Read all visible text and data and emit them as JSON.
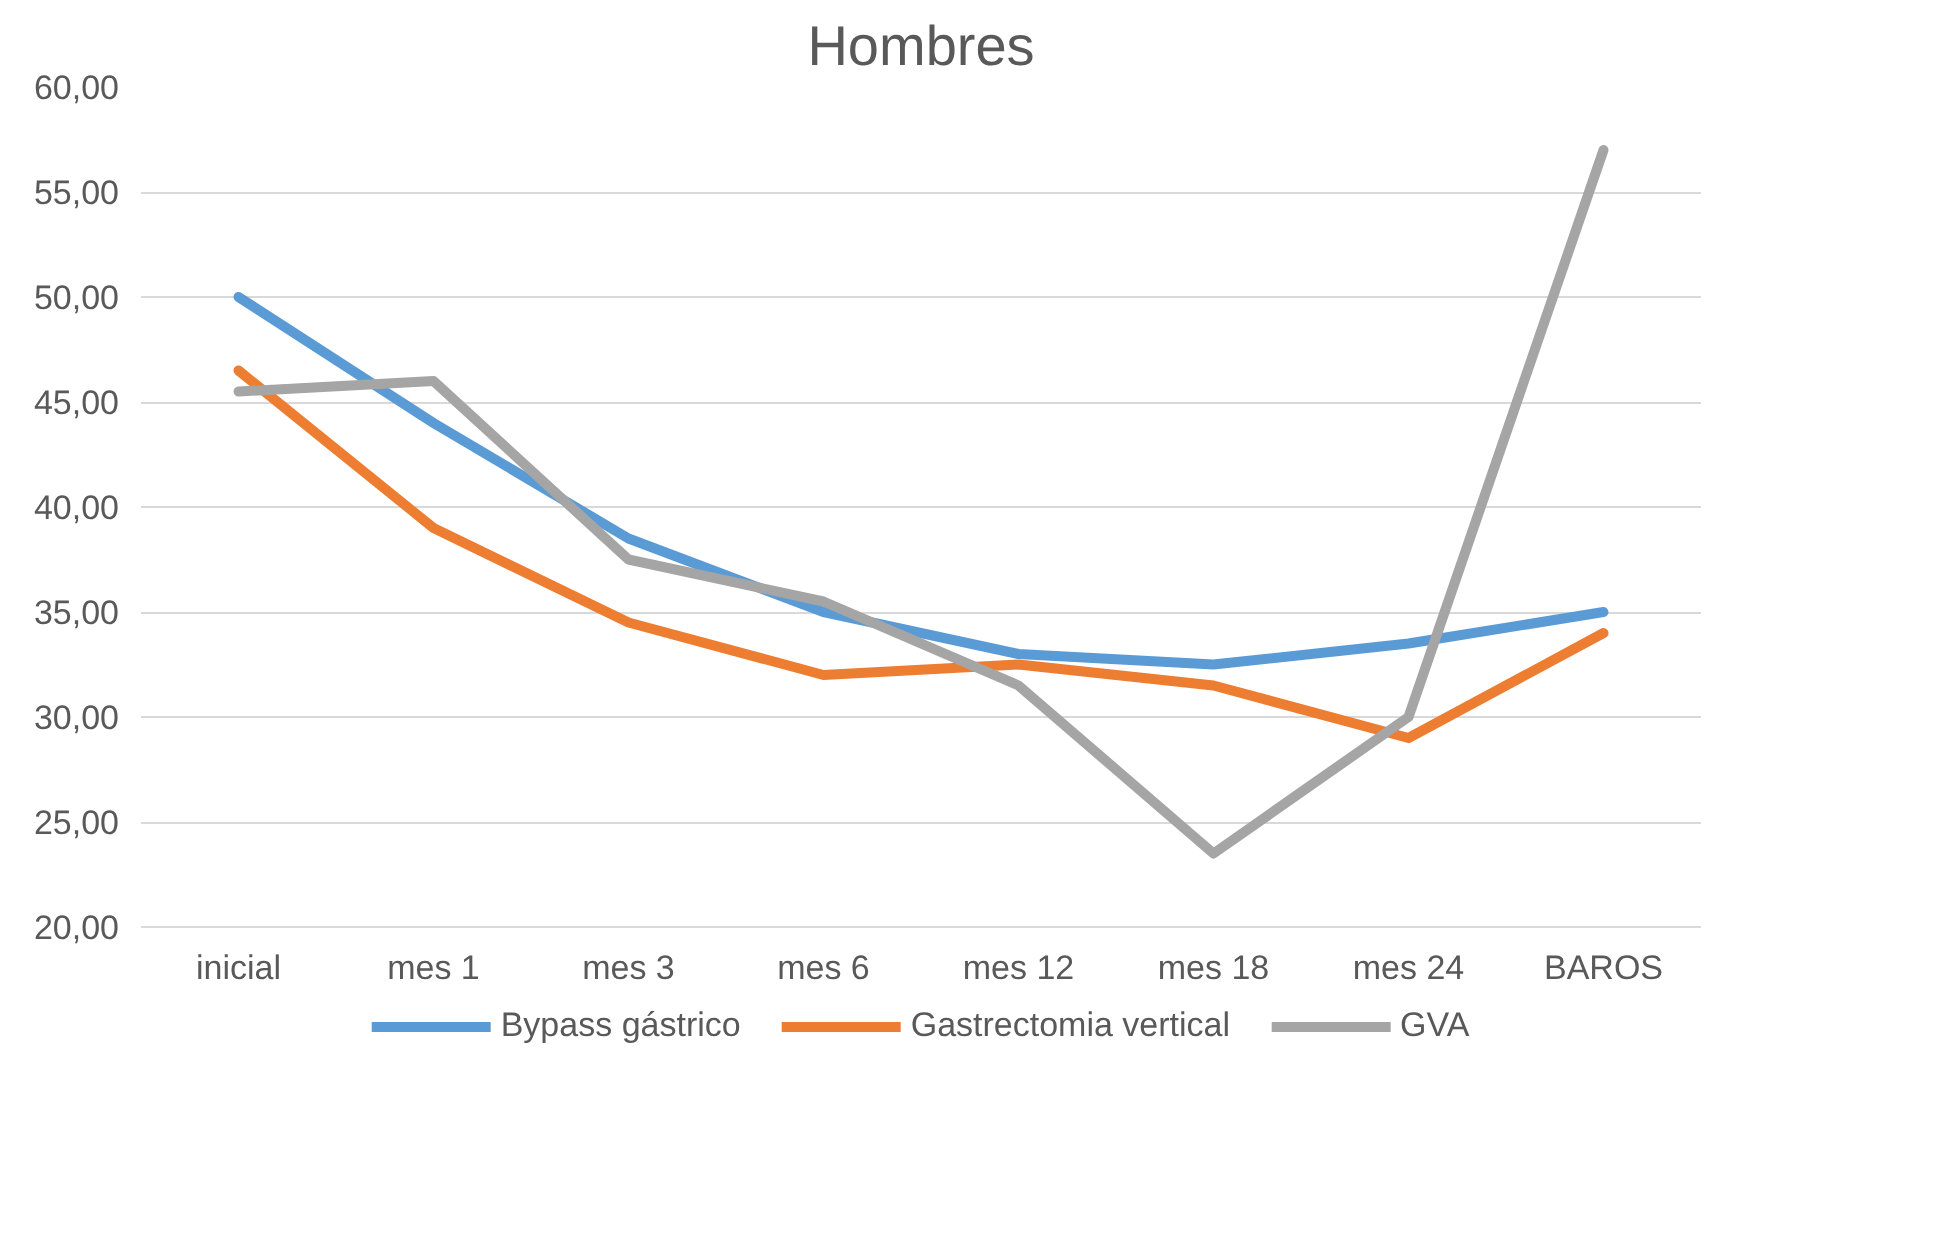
{
  "chart_data": {
    "type": "line",
    "title": "Hombres",
    "categories": [
      "inicial",
      "mes 1",
      "mes 3",
      "mes 6",
      "mes 12",
      "mes 18",
      "mes 24",
      "BAROS"
    ],
    "series": [
      {
        "name": "Bypass gástrico",
        "color": "#5b9bd5",
        "values": [
          50,
          44,
          38.5,
          35,
          33,
          32.5,
          33.5,
          35
        ]
      },
      {
        "name": "Gastrectomia vertical",
        "color": "#ed7d31",
        "values": [
          46.5,
          39,
          34.5,
          32,
          32.5,
          31.5,
          29,
          34
        ]
      },
      {
        "name": "GVA",
        "color": "#a5a5a5",
        "values": [
          45.5,
          46,
          37.5,
          35.5,
          31.5,
          23.5,
          30,
          57
        ]
      }
    ],
    "ylim": [
      20,
      60
    ],
    "yticks": [
      {
        "value": 20,
        "label": "20,00"
      },
      {
        "value": 25,
        "label": "25,00"
      },
      {
        "value": 30,
        "label": "30,00"
      },
      {
        "value": 35,
        "label": "35,00"
      },
      {
        "value": 40,
        "label": "40,00"
      },
      {
        "value": 45,
        "label": "45,00"
      },
      {
        "value": 50,
        "label": "50,00"
      },
      {
        "value": 55,
        "label": "55,00"
      },
      {
        "value": 60,
        "label": "60,00"
      }
    ],
    "grid": "y",
    "legend": "bottom",
    "marker": "none",
    "line_style": "solid"
  }
}
